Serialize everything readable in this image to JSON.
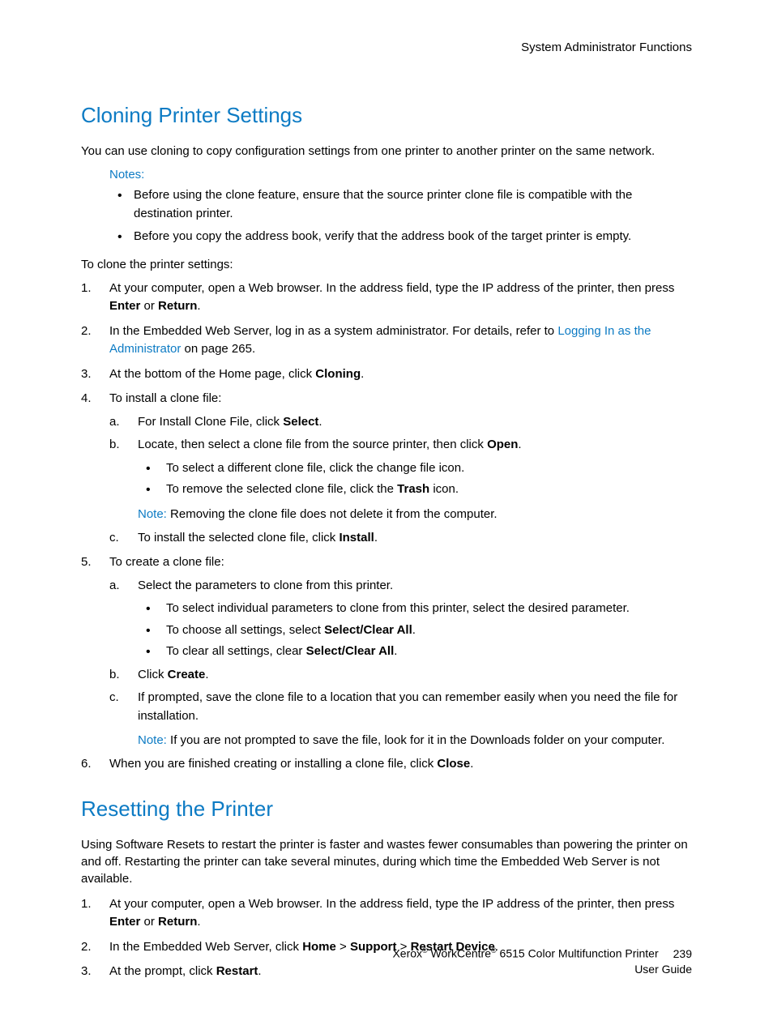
{
  "header": {
    "category": "System Administrator Functions"
  },
  "section1": {
    "title": "Cloning Printer Settings",
    "intro": "You can use cloning to copy configuration settings from one printer to another printer on the same network.",
    "notes_label": "Notes:",
    "notes": [
      "Before using the clone feature, ensure that the source printer clone file is compatible with the destination printer.",
      "Before you copy the address book, verify that the address book of the target printer is empty."
    ],
    "procedure_intro": "To clone the printer settings:",
    "step1_a": "At your computer, open a Web browser. In the address field, type the IP address of the printer, then press ",
    "step1_enter": "Enter",
    "step1_or": " or ",
    "step1_return": "Return",
    "step1_end": ".",
    "step2_a": "In the Embedded Web Server, log in as a system administrator. For details, refer to ",
    "step2_link": "Logging In as the Administrator",
    "step2_b": " on page 265.",
    "step3_a": "At the bottom of the Home page, click ",
    "step3_b": "Cloning",
    "step3_c": ".",
    "step4": "To install a clone file:",
    "step4a_a": "For Install Clone File, click ",
    "step4a_b": "Select",
    "step4a_c": ".",
    "step4b_a": "Locate, then select a clone file from the source printer, then click ",
    "step4b_b": "Open",
    "step4b_c": ".",
    "step4b_bullet1": "To select a different clone file, click the change file icon.",
    "step4b_bullet2_a": "To remove the selected clone file, click the ",
    "step4b_bullet2_b": "Trash",
    "step4b_bullet2_c": " icon.",
    "step4_note_label": "Note:",
    "step4_note_text": " Removing the clone file does not delete it from the computer.",
    "step4c_a": "To install the selected clone file, click ",
    "step4c_b": "Install",
    "step4c_c": ".",
    "step5": "To create a clone file:",
    "step5a": "Select the parameters to clone from this printer.",
    "step5a_bullet1": "To select individual parameters to clone from this printer, select the desired parameter.",
    "step5a_bullet2_a": "To choose all settings, select ",
    "step5a_bullet2_b": "Select/Clear All",
    "step5a_bullet2_c": ".",
    "step5a_bullet3_a": "To clear all settings, clear ",
    "step5a_bullet3_b": "Select/Clear All",
    "step5a_bullet3_c": ".",
    "step5b_a": "Click ",
    "step5b_b": "Create",
    "step5b_c": ".",
    "step5c": "If prompted, save the clone file to a location that you can remember easily when you need the file for installation.",
    "step5_note_label": "Note:",
    "step5_note_text": " If you are not prompted to save the file, look for it in the Downloads folder on your computer.",
    "step6_a": "When you are finished creating or installing a clone file, click ",
    "step6_b": "Close",
    "step6_c": "."
  },
  "section2": {
    "title": "Resetting the Printer",
    "intro": "Using Software Resets to restart the printer is faster and wastes fewer consumables than powering the printer on and off. Restarting the printer can take several minutes, during which time the Embedded Web Server is not available.",
    "step1_a": "At your computer, open a Web browser. In the address field, type the IP address of the printer, then press ",
    "step1_enter": "Enter",
    "step1_or": " or ",
    "step1_return": "Return",
    "step1_end": ".",
    "step2_a": "In the Embedded Web Server, click ",
    "step2_home": "Home",
    "step2_gt1": " > ",
    "step2_support": "Support",
    "step2_gt2": " > ",
    "step2_restart": "Restart Device",
    "step2_end": ".",
    "step3_a": "At the prompt, click ",
    "step3_b": "Restart",
    "step3_c": "."
  },
  "footer": {
    "line1_a": "Xerox",
    "line1_b": " WorkCentre",
    "line1_c": " 6515 Color Multifunction Printer",
    "line2": "User Guide",
    "pagenum": "239"
  }
}
